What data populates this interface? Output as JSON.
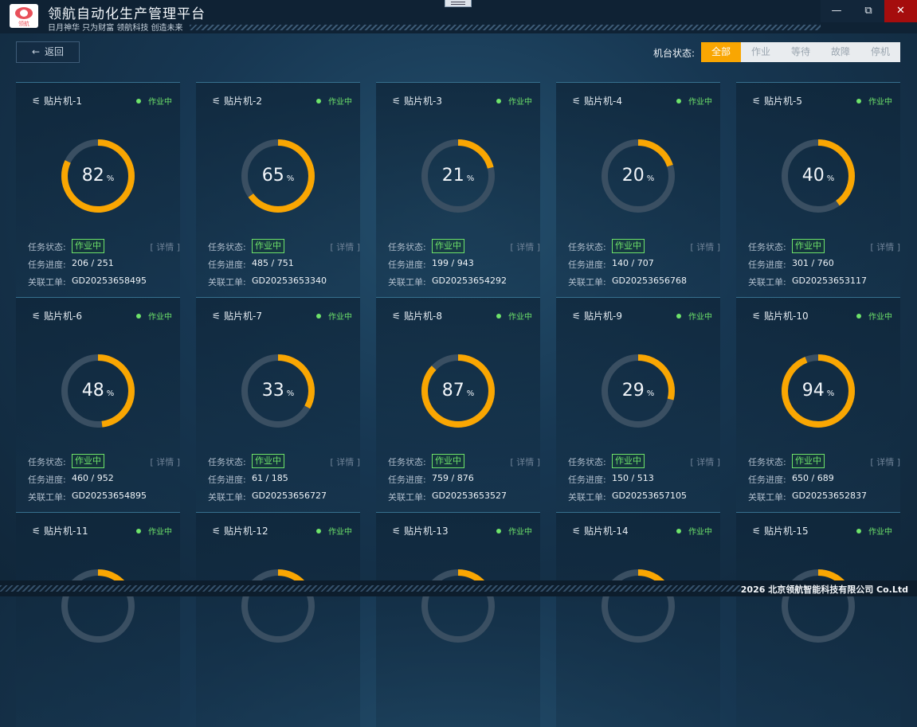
{
  "app": {
    "logo_text": "领航",
    "title": "领航自动化生产管理平台",
    "slogan": "日月神华 只为财富 领航科技 创造未来"
  },
  "window": {
    "minimize": "—",
    "maximize": "⧉",
    "close": "✕"
  },
  "toolbar": {
    "back_label": "返回",
    "filter_label": "机台状态:",
    "filters": [
      "全部",
      "作业",
      "等待",
      "故障",
      "停机"
    ],
    "active_filter": 0
  },
  "labels": {
    "task_status": "任务状态:",
    "task_progress": "任务进度:",
    "work_order": "关联工单:",
    "detail": "[ 详情 ]",
    "percent_unit": "%"
  },
  "colors": {
    "accent": "#f9a602",
    "running": "#6ee36a",
    "ring_track": "#3a4f62"
  },
  "machines": [
    {
      "name": "贴片机-1",
      "status": "作业中",
      "task_status": "作业中",
      "percent": "82",
      "progress": "206 / 251",
      "order": "GD20253658495"
    },
    {
      "name": "贴片机-2",
      "status": "作业中",
      "task_status": "作业中",
      "percent": "65",
      "progress": "485 / 751",
      "order": "GD20253653340"
    },
    {
      "name": "贴片机-3",
      "status": "作业中",
      "task_status": "作业中",
      "percent": "21",
      "progress": "199 / 943",
      "order": "GD20253654292"
    },
    {
      "name": "贴片机-4",
      "status": "作业中",
      "task_status": "作业中",
      "percent": "20",
      "progress": "140 / 707",
      "order": "GD20253656768"
    },
    {
      "name": "贴片机-5",
      "status": "作业中",
      "task_status": "作业中",
      "percent": "40",
      "progress": "301 / 760",
      "order": "GD20253653117"
    },
    {
      "name": "贴片机-6",
      "status": "作业中",
      "task_status": "作业中",
      "percent": "48",
      "progress": "460 / 952",
      "order": "GD20253654895"
    },
    {
      "name": "贴片机-7",
      "status": "作业中",
      "task_status": "作业中",
      "percent": "33",
      "progress": "61 / 185",
      "order": "GD20253656727"
    },
    {
      "name": "贴片机-8",
      "status": "作业中",
      "task_status": "作业中",
      "percent": "87",
      "progress": "759 / 876",
      "order": "GD20253653527"
    },
    {
      "name": "贴片机-9",
      "status": "作业中",
      "task_status": "作业中",
      "percent": "29",
      "progress": "150 / 513",
      "order": "GD20253657105"
    },
    {
      "name": "贴片机-10",
      "status": "作业中",
      "task_status": "作业中",
      "percent": "94",
      "progress": "650 / 689",
      "order": "GD20253652837"
    },
    {
      "name": "贴片机-11",
      "status": "作业中",
      "task_status": "",
      "percent": "",
      "progress": "",
      "order": ""
    },
    {
      "name": "贴片机-12",
      "status": "作业中",
      "task_status": "",
      "percent": "",
      "progress": "",
      "order": ""
    },
    {
      "name": "贴片机-13",
      "status": "作业中",
      "task_status": "",
      "percent": "",
      "progress": "",
      "order": ""
    },
    {
      "name": "贴片机-14",
      "status": "作业中",
      "task_status": "",
      "percent": "",
      "progress": "",
      "order": ""
    },
    {
      "name": "贴片机-15",
      "status": "作业中",
      "task_status": "",
      "percent": "",
      "progress": "",
      "order": ""
    }
  ],
  "footer": {
    "copyright": "2026 北京领航智能科技有限公司 Co.Ltd"
  }
}
